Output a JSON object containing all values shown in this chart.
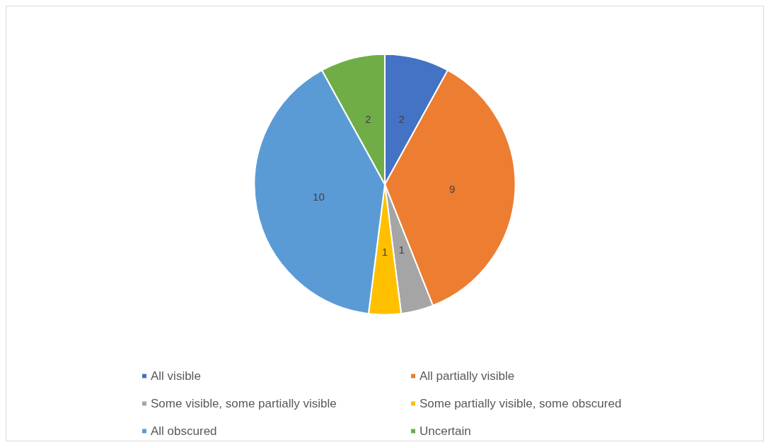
{
  "chart_data": {
    "type": "pie",
    "categories": [
      "All visible",
      "All partially visible",
      "Some visible, some partially visible",
      "Some partially visible, some obscured",
      "All obscured",
      "Uncertain"
    ],
    "values": [
      2,
      9,
      1,
      1,
      10,
      2
    ],
    "colors": [
      "#4472c4",
      "#ed7d31",
      "#a5a5a5",
      "#ffc000",
      "#5b9bd5",
      "#70ad47"
    ],
    "data_labels": true,
    "legend": "bottom"
  }
}
